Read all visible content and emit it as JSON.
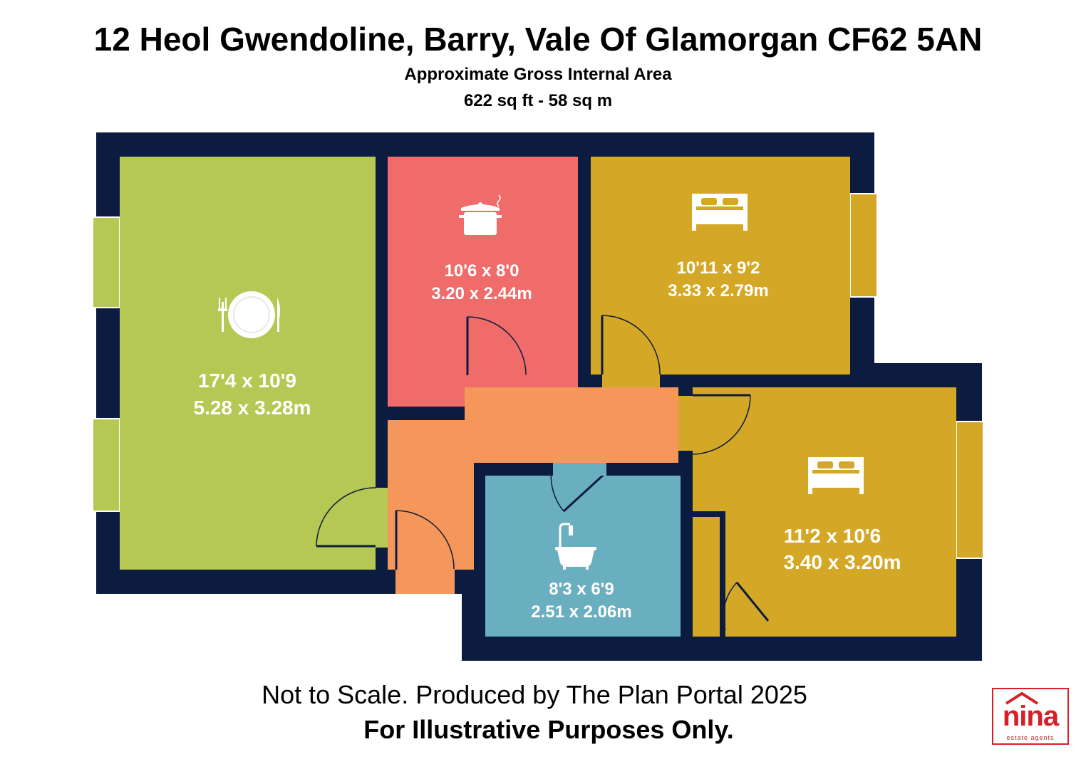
{
  "header": {
    "title": "12 Heol Gwendoline, Barry, Vale Of Glamorgan CF62 5AN",
    "area_label": "Approximate Gross Internal Area",
    "area_value": "622 sq ft - 58 sq m"
  },
  "rooms": {
    "living": {
      "imperial": "17'4 x 10'9",
      "metric": "5.28 x 3.28m",
      "icon": "dining-plate-icon",
      "color": "#b5c853"
    },
    "kitchen": {
      "imperial": "10'6 x 8'0",
      "metric": "3.20 x 2.44m",
      "icon": "cooking-pot-icon",
      "color": "#ef6c6a"
    },
    "bedroom1": {
      "imperial": "10'11 x 9'2",
      "metric": "3.33 x 2.79m",
      "icon": "bed-icon",
      "color": "#d4a826"
    },
    "bedroom2": {
      "imperial": "11'2 x 10'6",
      "metric": "3.40 x 3.20m",
      "icon": "bed-icon",
      "color": "#d4a826"
    },
    "bathroom": {
      "imperial": "8'3 x 6'9",
      "metric": "2.51 x 2.06m",
      "icon": "bathtub-icon",
      "color": "#6aafc0"
    },
    "hallway": {
      "color": "#f5975a"
    }
  },
  "colors": {
    "walls": "#0c1c40",
    "window": "#b5c853"
  },
  "footer": {
    "scale_note": "Not to Scale. Produced by The Plan Portal 2025",
    "disclaimer": "For Illustrative Purposes Only."
  },
  "logo": {
    "name": "nina",
    "tagline": "estate agents"
  }
}
